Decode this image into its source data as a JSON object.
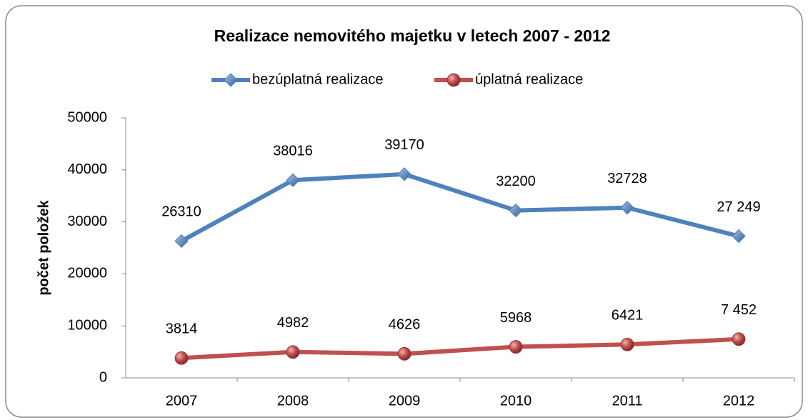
{
  "chart_data": {
    "type": "line",
    "title": "Realizace nemovitého majetku v letech 2007 - 2012",
    "y_label": "počet položek",
    "categories": [
      "2007",
      "2008",
      "2009",
      "2010",
      "2011",
      "2012"
    ],
    "series": [
      {
        "name": "bezúplatná realizace",
        "color": "#4f81bd",
        "marker": "diamond",
        "values": [
          26310,
          38016,
          39170,
          32200,
          32728,
          27249
        ],
        "value_labels": [
          "26310",
          "38016",
          "39170",
          "32200",
          "32728",
          "27 249"
        ]
      },
      {
        "name": "úplatná realizace",
        "color": "#c0504d",
        "marker": "circle",
        "values": [
          3814,
          4982,
          4626,
          5968,
          6421,
          7452
        ],
        "value_labels": [
          "3814",
          "4982",
          "4626",
          "5968",
          "6421",
          "7 452"
        ]
      }
    ],
    "ylim": [
      0,
      50000
    ],
    "yticks": [
      0,
      10000,
      20000,
      30000,
      40000,
      50000
    ],
    "legend": "top",
    "grid": false
  }
}
